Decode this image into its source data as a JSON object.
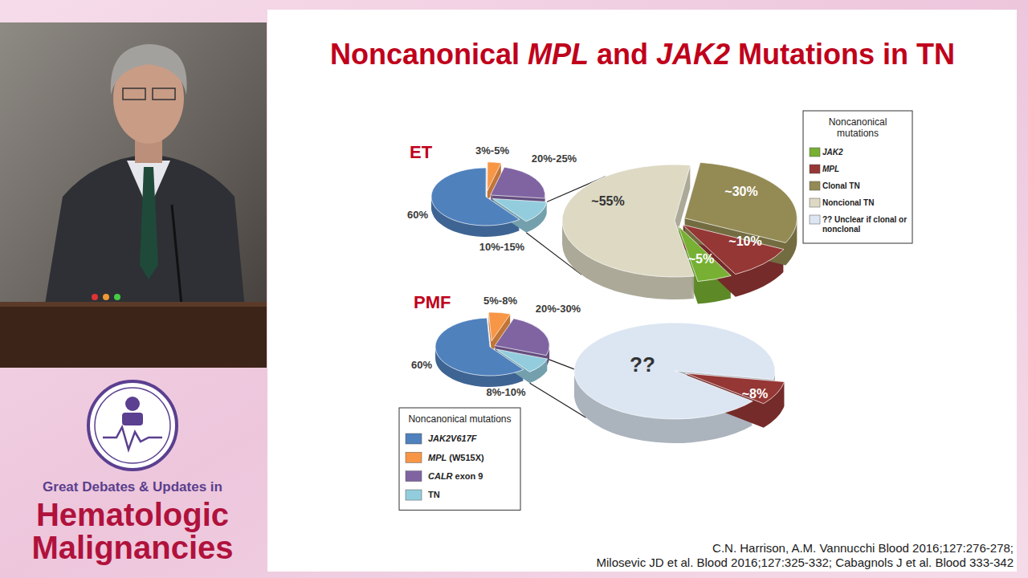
{
  "slide": {
    "title": "Noncanonical MPL and JAK2 Mutations in TN",
    "citation": [
      "C.N. Harrison, A.M. Vannucchi Blood 2016;127:276-278;",
      "Milosevic JD et al. Blood 2016;127:325-332; Cabagnols J et al. Blood 333-342"
    ]
  },
  "branding": {
    "lines": [
      "Great Debates & Updates in",
      "Hematologic",
      "Malignancies"
    ]
  },
  "legends": [
    {
      "title": "Noncanonical mutations",
      "entries": [
        {
          "label": "JAK2",
          "color": "#77b032"
        },
        {
          "label": "MPL",
          "color": "#953735"
        },
        {
          "label": "Clonal TN",
          "color": "#948a54"
        },
        {
          "label": "Noncional TN",
          "color": "#ddd9c3"
        },
        {
          "label": "?? Unclear if clonal or nonclonal",
          "color": "#dce6f2"
        }
      ]
    },
    {
      "title": "Noncanonical mutations",
      "entries": [
        {
          "label": "JAK2V617F",
          "color": "#4f81bd"
        },
        {
          "label": "MPL (W515X)",
          "color": "#f79646"
        },
        {
          "label": "CALR exon 9",
          "color": "#8064a2"
        },
        {
          "label": "TN",
          "color": "#93cddd"
        }
      ]
    }
  ],
  "chart_data": [
    {
      "type": "pie",
      "title": "ET",
      "values": [
        60,
        4,
        22.5,
        12.5
      ],
      "value_labels": [
        "60%",
        "3%-5%",
        "20%-25%",
        "10%-15%"
      ],
      "colors": [
        "#4f81bd",
        "#f79646",
        "#8064a2",
        "#93cddd"
      ],
      "data_labels": true
    },
    {
      "type": "pie",
      "values": [
        5,
        10,
        30,
        55
      ],
      "value_labels": [
        "~5%",
        "~10%",
        "~30%",
        "~55%"
      ],
      "colors": [
        "#77b032",
        "#953735",
        "#948a54",
        "#ddd9c3"
      ],
      "data_labels": true
    },
    {
      "type": "pie",
      "title": "PMF",
      "values": [
        60,
        6.5,
        25,
        9
      ],
      "value_labels": [
        "60%",
        "5%-8%",
        "20%-30%",
        "8%-10%"
      ],
      "colors": [
        "#4f81bd",
        "#f79646",
        "#8064a2",
        "#93cddd"
      ],
      "data_labels": true
    },
    {
      "type": "pie",
      "values": [
        92,
        8
      ],
      "value_labels": [
        "??",
        "~8%"
      ],
      "colors": [
        "#dce6f2",
        "#953735"
      ],
      "data_labels": true
    }
  ]
}
